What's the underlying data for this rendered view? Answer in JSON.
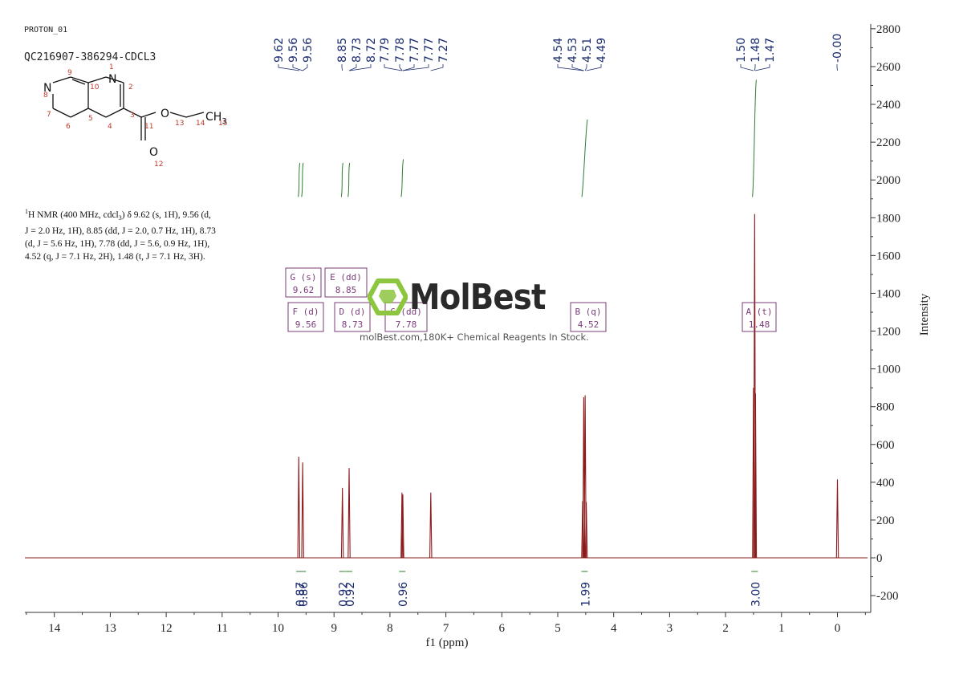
{
  "header": {
    "spectrum_name": "PROTON_01",
    "sample_name": "QC216907-386294-CDCL3"
  },
  "structure": {
    "atom_numbers": [
      "9",
      "1",
      "2",
      "10",
      "3",
      "8",
      "7",
      "5",
      "4",
      "6",
      "11",
      "13",
      "14",
      "15",
      "12"
    ],
    "atom_symbols": [
      "N",
      "N",
      "O",
      "O"
    ],
    "group_label": "CH",
    "group_subscript": "3"
  },
  "summary": {
    "line1_sup": "1",
    "line1": "H NMR (400 MHz, cdcl",
    "line1_sub": "3",
    "line1_tail": ") δ 9.62 (s, 1H), 9.56 (d,",
    "line2": "J = 2.0 Hz, 1H), 8.85 (dd, J = 2.0, 0.7 Hz, 1H), 8.73",
    "line3": "(d, J = 5.6 Hz, 1H), 7.78 (dd, J = 5.6, 0.9 Hz, 1H),",
    "line4": "4.52 (q, J = 7.1 Hz, 2H), 1.48 (t, J = 7.1 Hz, 3H)."
  },
  "watermark": {
    "brand": "MolBest",
    "tagline": "molBest.com,180K+ Chemical Reagents In Stock."
  },
  "colors": {
    "spectrum": "#8b1a1a",
    "peak_labels": "#1a2a6e",
    "integral": "#2e7d32",
    "multiplet_box": "#7a3c7a",
    "axis": "#333333"
  },
  "chart_data": {
    "type": "line",
    "xlabel": "f1 (ppm)",
    "ylabel": "Intensity",
    "xlim": [
      14.5,
      -0.5
    ],
    "ylim": [
      -250,
      2850
    ],
    "x_ticks": [
      14,
      13,
      12,
      11,
      10,
      9,
      8,
      7,
      6,
      5,
      4,
      3,
      2,
      1,
      0
    ],
    "y_ticks": [
      -200,
      0,
      200,
      400,
      600,
      800,
      1000,
      1200,
      1400,
      1600,
      1800,
      2000,
      2200,
      2400,
      2600,
      2800
    ],
    "peaks": [
      {
        "ppm": 9.63,
        "height": 535
      },
      {
        "ppm": 9.56,
        "height": 505
      },
      {
        "ppm": 8.85,
        "height": 370
      },
      {
        "ppm": 8.73,
        "height": 475
      },
      {
        "ppm": 7.785,
        "height": 345
      },
      {
        "ppm": 7.77,
        "height": 335
      },
      {
        "ppm": 7.27,
        "height": 345
      },
      {
        "ppm": 4.555,
        "height": 300
      },
      {
        "ppm": 4.535,
        "height": 850
      },
      {
        "ppm": 4.51,
        "height": 860
      },
      {
        "ppm": 4.49,
        "height": 295
      },
      {
        "ppm": 1.5,
        "height": 900
      },
      {
        "ppm": 1.48,
        "height": 1820
      },
      {
        "ppm": 1.465,
        "height": 870
      },
      {
        "ppm": 0.0,
        "height": 415
      }
    ],
    "peak_labels": [
      "9.62",
      "9.56",
      "9.56",
      "8.85",
      "8.73",
      "8.72",
      "7.79",
      "7.78",
      "7.77",
      "7.77",
      "7.27",
      "4.54",
      "4.53",
      "4.51",
      "4.49",
      "1.50",
      "1.48",
      "1.47",
      "-0.00"
    ],
    "integrals": [
      {
        "ppm": 9.62,
        "value": "0.87"
      },
      {
        "ppm": 9.56,
        "value": "0.86"
      },
      {
        "ppm": 8.85,
        "value": "0.92"
      },
      {
        "ppm": 8.73,
        "value": "0.92"
      },
      {
        "ppm": 7.78,
        "value": "0.96"
      },
      {
        "ppm": 4.52,
        "value": "1.99"
      },
      {
        "ppm": 1.48,
        "value": "3.00"
      }
    ],
    "multiplets": [
      {
        "id": "G",
        "mult": "(s)",
        "shift": "9.62"
      },
      {
        "id": "E",
        "mult": "(dd)",
        "shift": "8.85"
      },
      {
        "id": "F",
        "mult": "(d)",
        "shift": "9.56"
      },
      {
        "id": "D",
        "mult": "(d)",
        "shift": "8.73"
      },
      {
        "id": "C",
        "mult": "(dd)",
        "shift": "7.78"
      },
      {
        "id": "B",
        "mult": "(q)",
        "shift": "4.52"
      },
      {
        "id": "A",
        "mult": "(t)",
        "shift": "1.48"
      }
    ]
  }
}
